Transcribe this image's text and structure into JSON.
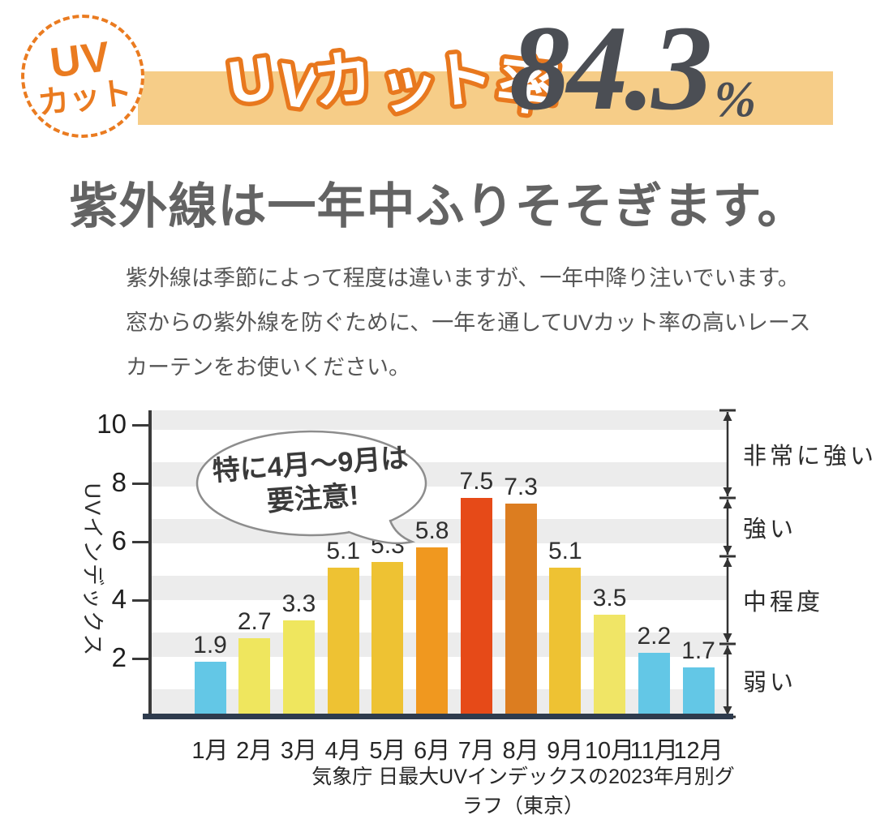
{
  "badge": {
    "line1": "UV",
    "line2": "カット"
  },
  "header": {
    "label": "UVカット率",
    "value": "84.3",
    "unit": "%"
  },
  "title": "紫外線は一年中ふりそそぎます。",
  "paragraph": {
    "lines": [
      "紫外線は季節によって程度は違いますが、一年中降り注いでいます。",
      "窓からの紫外線を防ぐために、一年を通してUVカット率の高いレース",
      "カーテンをお使いください。"
    ]
  },
  "callout": {
    "line1": "特に4月～9月は",
    "line2": "要注意!"
  },
  "chart_data": {
    "type": "bar",
    "categories": [
      "1月",
      "2月",
      "3月",
      "4月",
      "5月",
      "6月",
      "7月",
      "8月",
      "9月",
      "10月",
      "11月",
      "12月"
    ],
    "values": [
      1.9,
      2.7,
      3.3,
      5.1,
      5.3,
      5.8,
      7.5,
      7.3,
      5.1,
      3.5,
      2.2,
      1.7
    ],
    "bar_colors": [
      "#63c7e6",
      "#efe65e",
      "#efe65e",
      "#eec233",
      "#eec233",
      "#f0981f",
      "#e64a18",
      "#dc7d20",
      "#eec233",
      "#f0e566",
      "#63c7e6",
      "#63c7e6"
    ],
    "ylabel": "UVインデックス",
    "yticks": [
      2,
      4,
      6,
      8,
      10
    ],
    "ylim": [
      0,
      10.5
    ],
    "grid": "horizontal-stripes",
    "zones": [
      {
        "label": "非常に強い",
        "from": 7.5,
        "to": 10.5
      },
      {
        "label": "強い",
        "from": 5.5,
        "to": 7.5
      },
      {
        "label": "中程度",
        "from": 2.5,
        "to": 5.5
      },
      {
        "label": "弱い",
        "from": 0,
        "to": 2.5
      }
    ],
    "source": "気象庁 日最大UVインデックスの2023年月別グラフ（東京）"
  }
}
